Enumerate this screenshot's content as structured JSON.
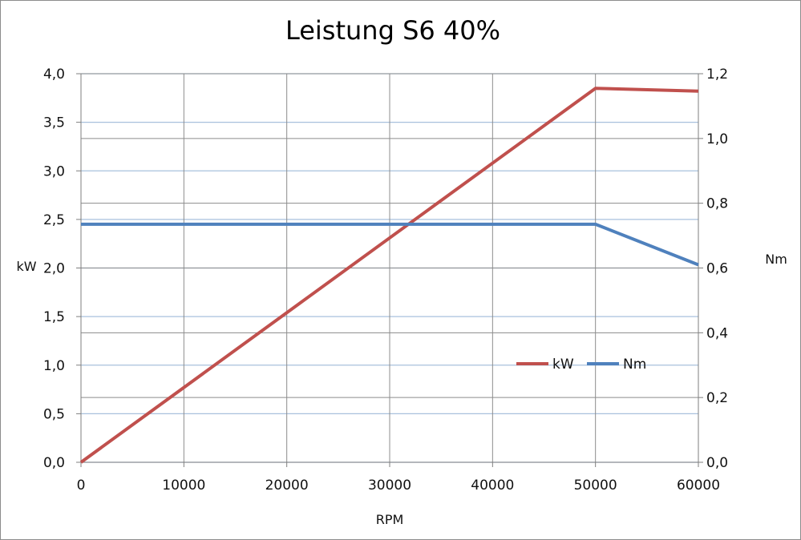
{
  "chart_data": {
    "type": "line",
    "title": "Leistung S6 40%",
    "xlabel": "RPM",
    "ylabel_left": "kW",
    "ylabel_right": "Nm",
    "xlim": [
      0,
      60000
    ],
    "ylim_left": [
      0,
      4.0
    ],
    "ylim_right": [
      0,
      1.2
    ],
    "x_ticks": [
      "0",
      "10000",
      "20000",
      "30000",
      "40000",
      "50000",
      "60000"
    ],
    "y_left_ticks": [
      "0,0",
      "0,5",
      "1,0",
      "1,5",
      "2,0",
      "2,5",
      "3,0",
      "3,5",
      "4,0"
    ],
    "y_right_ticks": [
      "0,0",
      "0,2",
      "0,4",
      "0,6",
      "0,8",
      "1,0",
      "1,2"
    ],
    "grid": true,
    "legend_position": "right-middle",
    "series": [
      {
        "name": "kW",
        "axis": "left",
        "color": "#c0504d",
        "x": [
          0,
          50000,
          60000
        ],
        "y": [
          0.0,
          3.85,
          3.82
        ]
      },
      {
        "name": "Nm",
        "axis": "right",
        "color": "#4f81bd",
        "x": [
          0,
          50000,
          60000
        ],
        "y": [
          0.735,
          0.735,
          0.61
        ]
      }
    ]
  }
}
